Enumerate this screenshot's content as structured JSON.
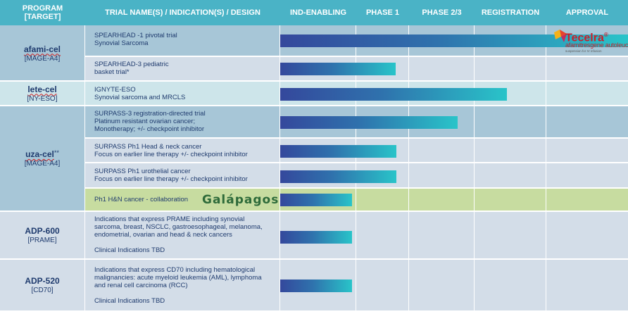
{
  "header": {
    "program": "PROGRAM",
    "target": "[TARGET]",
    "trial": "TRIAL NAME(S) / INDICATION(S) / DESIGN",
    "ind": "IND-ENABLING",
    "phase1": "PHASE 1",
    "phase23": "PHASE  2/3",
    "registration": "REGISTRATION",
    "approval": "APPROVAL"
  },
  "programs": {
    "afami": {
      "name": "afami-cel",
      "target": "[MAGE-A4]"
    },
    "lete": {
      "name": "lete-cel",
      "target": "[NY-ESO]"
    },
    "uza": {
      "name": "uza-cel",
      "sup": "**",
      "target": "[MAGE-A4]"
    },
    "adp600": {
      "name": "ADP-600",
      "target": "[PRAME]"
    },
    "adp520": {
      "name": "ADP-520",
      "target": "[CD70]"
    }
  },
  "trials": {
    "t1": [
      "SPEARHEAD -1 pivotal trial",
      "Synovial Sarcoma"
    ],
    "t2": [
      "SPEARHEAD-3 pediatric",
      "basket trial*"
    ],
    "t3": [
      "IGNYTE-ESO",
      "Synovial sarcoma and MRCLS"
    ],
    "t4": [
      "SURPASS-3 registration-directed trial",
      "Platinum resistant ovarian cancer;",
      "Monotherapy; +/- checkpoint inhibitor"
    ],
    "t5": [
      "SURPASS Ph1 Head & neck cancer",
      "Focus on earlier line therapy +/- checkpoint inhibitor"
    ],
    "t6": [
      "SURPASS Ph1 urothelial cancer",
      "Focus on earlier line therapy +/- checkpoint inhibitor"
    ],
    "t7": [
      "Ph1 H&N cancer - collaboration"
    ],
    "t8": [
      "Indications that express PRAME including synovial",
      "sarcoma, breast, NSCLC, gastroesophageal, melanoma,",
      "endometrial, ovarian and head & neck cancers"
    ],
    "t8tbd": "Clinical Indications TBD",
    "t9": [
      "Indications that express CD70 including hematological",
      "malignancies: acute myeloid leukemia (AML), lymphoma",
      "and renal cell carcinoma (RCC)"
    ],
    "t9tbd": "Clinical Indications TBD"
  },
  "logos": {
    "tecelra_name": "Tecelra",
    "tecelra_reg": "®",
    "tecelra_sub": "afamitresgene autoleucel",
    "tecelra_small": "suspension for IV infusion",
    "galapagos": "Galápagos"
  },
  "progress": {
    "t1": "approval",
    "t2": "phase 1",
    "t3": "registration",
    "t4": "phase 2/3",
    "t5": "phase 1",
    "t6": "phase 1",
    "t7": "ind-enabling",
    "t8": "ind-enabling",
    "t9": "ind-enabling"
  },
  "colors": {
    "header": "#4ab3c6",
    "dark_blue": "#1f3b6e",
    "bar_start": "#34489c",
    "bar_end": "#29c4c9",
    "collab": "#c7dca0"
  }
}
